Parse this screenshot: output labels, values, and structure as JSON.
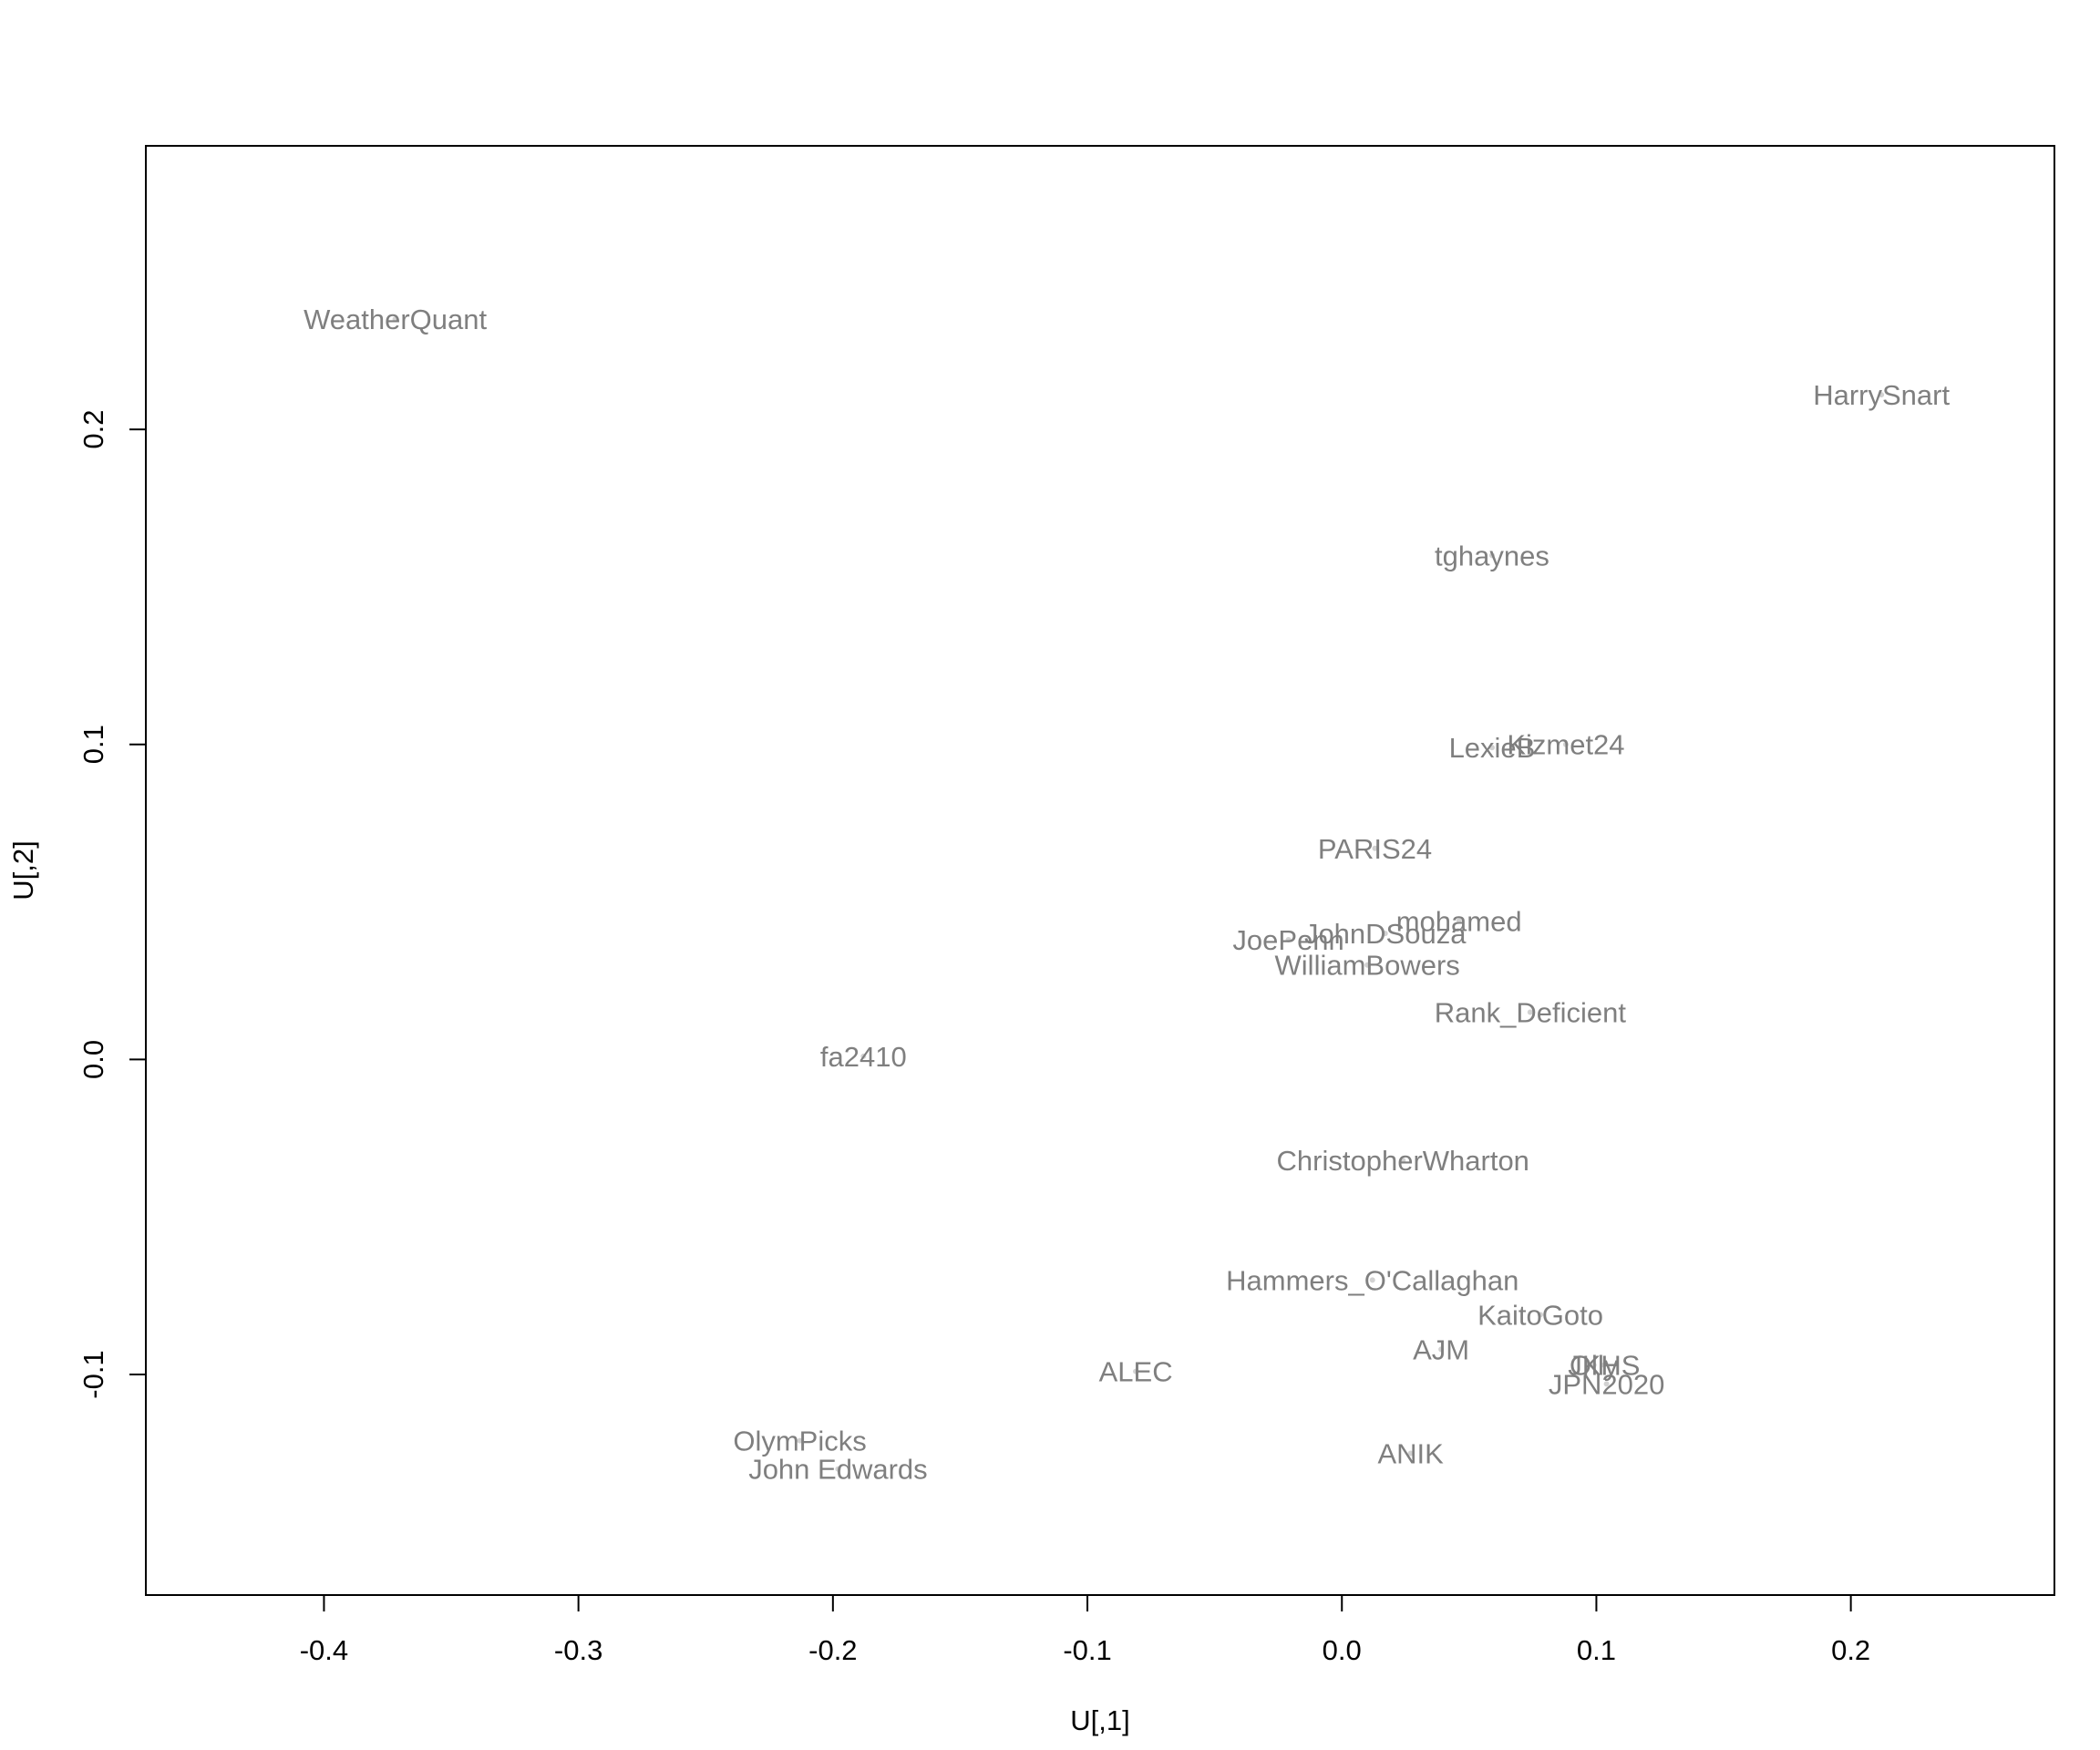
{
  "chart_data": {
    "type": "scatter",
    "title": "",
    "xlabel": "U[,1]",
    "ylabel": "U[,2]",
    "xlim": [
      -0.47,
      0.28
    ],
    "ylim": [
      -0.17,
      0.29
    ],
    "x_ticks": [
      "-0.4",
      "-0.3",
      "-0.2",
      "-0.1",
      "0.0",
      "0.1",
      "0.2"
    ],
    "y_ticks": [
      "-0.1",
      "0.0",
      "0.1",
      "0.2"
    ],
    "grid": false,
    "legend": "none",
    "marker": "text labels at point locations",
    "label_color": "#7f7f7f",
    "axis_color": "#000000",
    "points": [
      {
        "label": "WeatherQuant",
        "x": -0.372,
        "y": 0.235
      },
      {
        "label": "HarrySnart",
        "x": 0.212,
        "y": 0.211
      },
      {
        "label": "tghaynes",
        "x": 0.059,
        "y": 0.16
      },
      {
        "label": "Kizmet24",
        "x": 0.088,
        "y": 0.1
      },
      {
        "label": "LexieB",
        "x": 0.059,
        "y": 0.099
      },
      {
        "label": "PARIS24",
        "x": 0.013,
        "y": 0.067
      },
      {
        "label": "mohamed",
        "x": 0.046,
        "y": 0.044
      },
      {
        "label": "JohnDSouza",
        "x": 0.017,
        "y": 0.04
      },
      {
        "label": "JoePenn",
        "x": -0.021,
        "y": 0.038
      },
      {
        "label": "WilliamBowers",
        "x": 0.01,
        "y": 0.03
      },
      {
        "label": "Rank_Deficient",
        "x": 0.074,
        "y": 0.015
      },
      {
        "label": "fa2410",
        "x": -0.188,
        "y": 0.001
      },
      {
        "label": "ChristopherWharton",
        "x": 0.024,
        "y": -0.032
      },
      {
        "label": "Hammers_O'Callaghan",
        "x": 0.012,
        "y": -0.07
      },
      {
        "label": "KaitoGoto",
        "x": 0.078,
        "y": -0.081
      },
      {
        "label": "AJM",
        "x": 0.039,
        "y": -0.092
      },
      {
        "label": "JKHS",
        "x": 0.103,
        "y": -0.097
      },
      {
        "label": "Olly",
        "x": 0.099,
        "y": -0.097
      },
      {
        "label": "JPN2020",
        "x": 0.104,
        "y": -0.103
      },
      {
        "label": "ALEC",
        "x": -0.081,
        "y": -0.099
      },
      {
        "label": "ANIK",
        "x": 0.027,
        "y": -0.125
      },
      {
        "label": "OlymPicks",
        "x": -0.213,
        "y": -0.121
      },
      {
        "label": "John Edwards",
        "x": -0.198,
        "y": -0.13
      }
    ]
  }
}
